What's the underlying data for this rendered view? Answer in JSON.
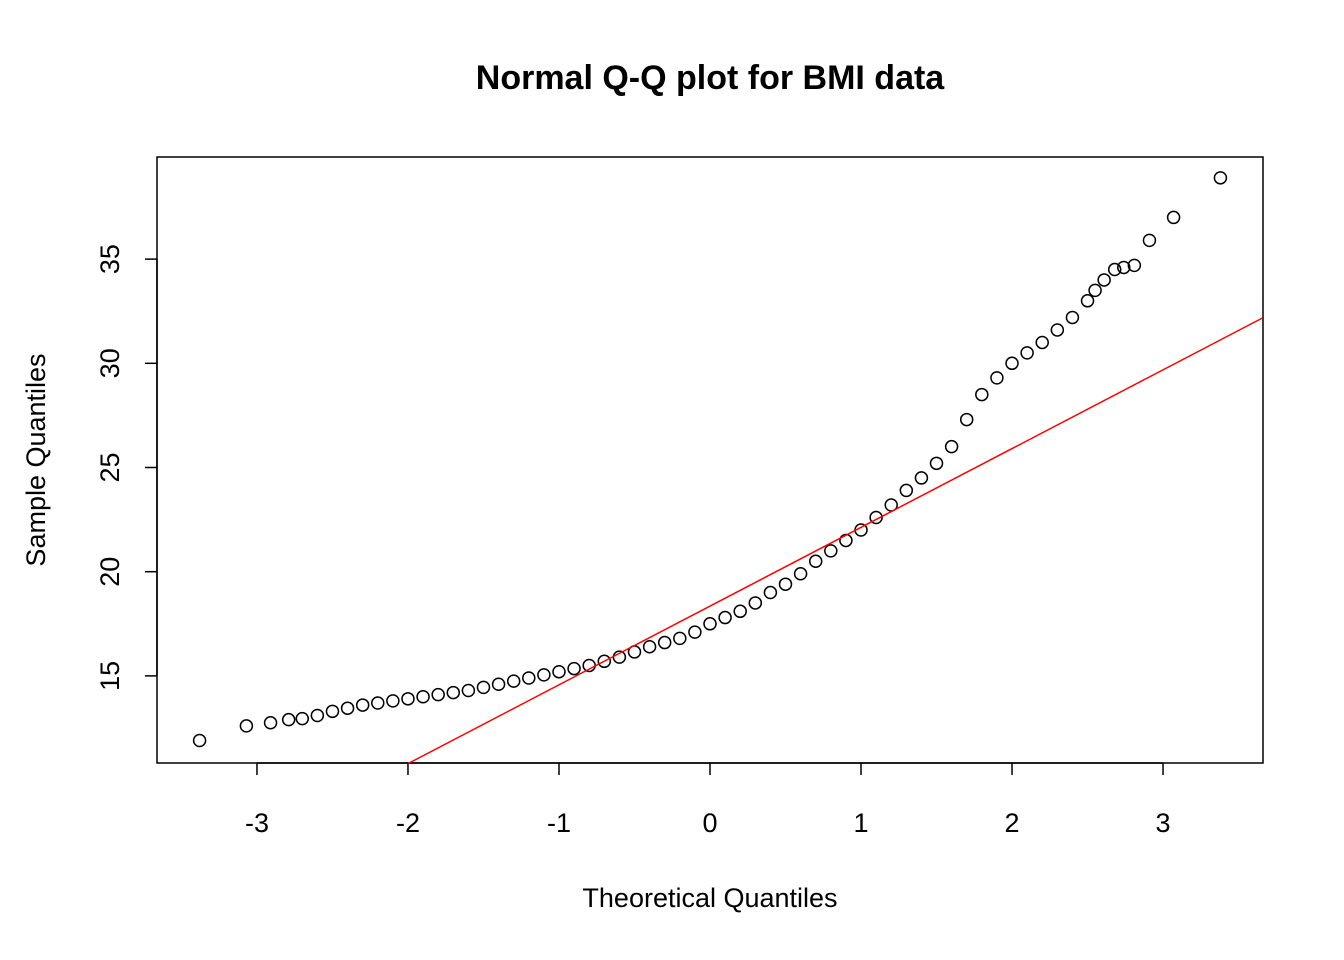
{
  "chart_data": {
    "type": "scatter",
    "title": "Normal Q-Q plot for BMI data",
    "xlabel": "Theoretical Quantiles",
    "ylabel": "Sample Quantiles",
    "color": "#000000",
    "x": [
      -3.38,
      -3.07,
      -2.91,
      -2.79,
      -2.7,
      -2.6,
      -2.5,
      -2.4,
      -2.3,
      -2.2,
      -2.1,
      -2.0,
      -1.9,
      -1.8,
      -1.7,
      -1.6,
      -1.5,
      -1.4,
      -1.3,
      -1.2,
      -1.1,
      -1.0,
      -0.9,
      -0.8,
      -0.7,
      -0.6,
      -0.5,
      -0.4,
      -0.3,
      -0.2,
      -0.1,
      0.0,
      0.1,
      0.2,
      0.3,
      0.4,
      0.5,
      0.6,
      0.7,
      0.8,
      0.9,
      1.0,
      1.1,
      1.2,
      1.3,
      1.4,
      1.5,
      1.6,
      1.7,
      1.8,
      1.9,
      2.0,
      2.1,
      2.2,
      2.3,
      2.4,
      2.5,
      2.55,
      2.61,
      2.68,
      2.74,
      2.81,
      2.91,
      3.07,
      3.38
    ],
    "y": [
      11.9,
      12.6,
      12.75,
      12.9,
      12.95,
      13.1,
      13.3,
      13.45,
      13.6,
      13.7,
      13.8,
      13.9,
      14.0,
      14.1,
      14.2,
      14.3,
      14.45,
      14.6,
      14.75,
      14.9,
      15.05,
      15.2,
      15.35,
      15.5,
      15.7,
      15.9,
      16.15,
      16.4,
      16.6,
      16.8,
      17.1,
      17.5,
      17.8,
      18.1,
      18.5,
      19.0,
      19.4,
      19.9,
      20.5,
      21.0,
      21.5,
      22.0,
      22.6,
      23.2,
      23.9,
      24.5,
      25.2,
      26.0,
      27.3,
      28.5,
      29.3,
      30.0,
      30.5,
      31.0,
      31.6,
      32.2,
      33.0,
      33.5,
      34.0,
      34.5,
      34.6,
      34.7,
      35.9,
      37.0,
      38.9
    ],
    "reference_line": {
      "x": [
        -2.0,
        3.66
      ],
      "y": [
        10.79,
        32.18
      ],
      "color": "#ff0000"
    },
    "xlim": [
      -3.662,
      3.662
    ],
    "ylim": [
      10.82,
      39.9
    ],
    "xticks": [
      -3,
      -2,
      -1,
      0,
      1,
      2,
      3
    ],
    "yticks": [
      15,
      20,
      25,
      30,
      35
    ]
  }
}
